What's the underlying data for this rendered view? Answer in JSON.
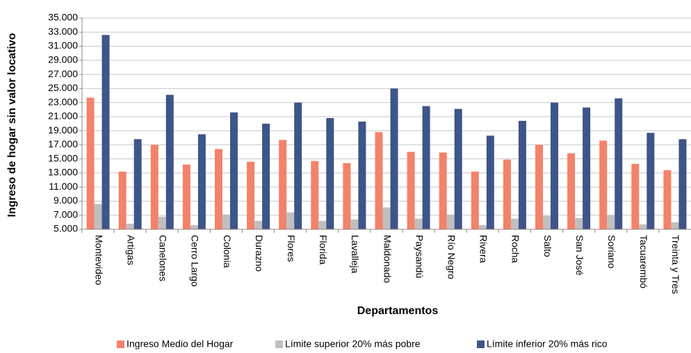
{
  "chart_data": {
    "type": "bar",
    "x_label": "Departamentos",
    "y_label": "Ingreso de hogar sin valor locativo",
    "categories": [
      "Montevideo",
      "Artigas",
      "Canelones",
      "Cerro Largo",
      "Colonia",
      "Durazno",
      "Flores",
      "Florida",
      "Lavalleja",
      "Maldonado",
      "Paysandú",
      "Río Negro",
      "Rivera",
      "Rocha",
      "Salto",
      "San José",
      "Soriano",
      "Tacuarembó",
      "Treinta y Tres"
    ],
    "series": [
      {
        "name": "Ingreso Medio del Hogar",
        "color": "#f4826a",
        "values": [
          23700,
          13200,
          17000,
          14200,
          16400,
          14600,
          17700,
          14700,
          14400,
          18800,
          16000,
          15900,
          13200,
          14900,
          17000,
          15800,
          17600,
          14300,
          13400
        ]
      },
      {
        "name": "Límite superior 20% más pobre",
        "color": "#bfbfbf",
        "values": [
          8600,
          5800,
          6800,
          5600,
          7100,
          6200,
          7400,
          6200,
          6400,
          8100,
          6500,
          7100,
          5600,
          6500,
          6900,
          6600,
          7000,
          5700,
          6000
        ]
      },
      {
        "name": "Límite inferior 20% más rico",
        "color": "#3f5488",
        "values": [
          32600,
          17800,
          24100,
          18500,
          21600,
          20000,
          23000,
          20800,
          20300,
          25000,
          22500,
          22100,
          18300,
          20400,
          23000,
          22300,
          23600,
          18700,
          17800
        ]
      }
    ],
    "ylim": [
      5000,
      35000
    ],
    "yticks": [
      {
        "value": 5000,
        "label": "5.000"
      },
      {
        "value": 7000,
        "label": "7.000"
      },
      {
        "value": 9000,
        "label": "9.000"
      },
      {
        "value": 11000,
        "label": "11.000"
      },
      {
        "value": 13000,
        "label": "13.000"
      },
      {
        "value": 15000,
        "label": "15.000"
      },
      {
        "value": 17000,
        "label": "17.000"
      },
      {
        "value": 19000,
        "label": "19.000"
      },
      {
        "value": 21000,
        "label": "21.000"
      },
      {
        "value": 23000,
        "label": "23.000"
      },
      {
        "value": 25000,
        "label": "25.000"
      },
      {
        "value": 27000,
        "label": "27.000"
      },
      {
        "value": 29000,
        "label": "29.000"
      },
      {
        "value": 31000,
        "label": "31.000"
      },
      {
        "value": 33000,
        "label": "33.000"
      },
      {
        "value": 35000,
        "label": "35.000"
      }
    ],
    "grid": true,
    "legend": "bottom"
  }
}
